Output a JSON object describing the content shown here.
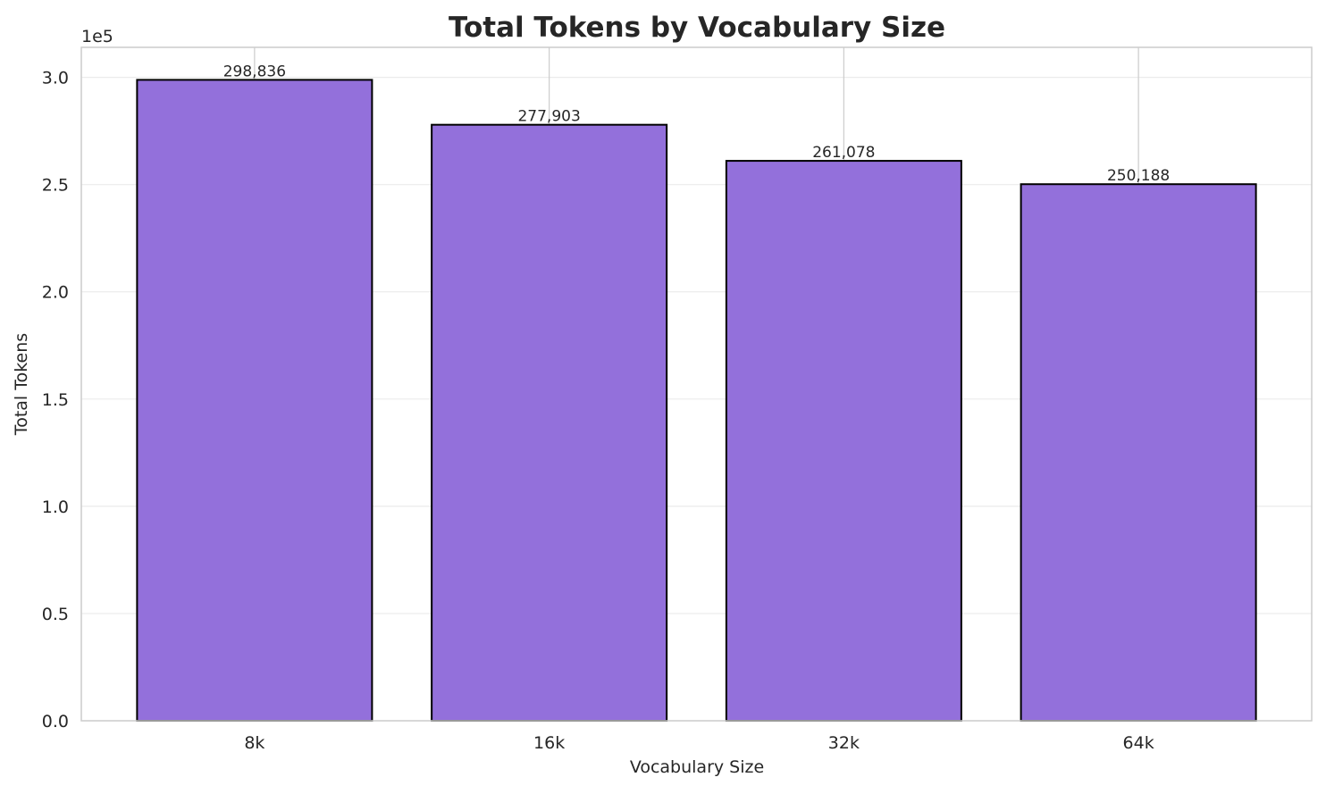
{
  "chart_data": {
    "type": "bar",
    "title": "Total Tokens by Vocabulary Size",
    "xlabel": "Vocabulary Size",
    "ylabel": "Total Tokens",
    "y_offset_label": "1e5",
    "y_scale_factor": 100000,
    "categories": [
      "8k",
      "16k",
      "32k",
      "64k"
    ],
    "values": [
      298836,
      277903,
      261078,
      250188
    ],
    "data_labels": [
      "298,836",
      "277,903",
      "261,078",
      "250,188"
    ],
    "yticks": [
      0,
      50000,
      100000,
      150000,
      200000,
      250000,
      300000
    ],
    "ytick_labels": [
      "0.0",
      "0.5",
      "1.0",
      "1.5",
      "2.0",
      "2.5",
      "3.0"
    ],
    "ylim": [
      0,
      314000
    ],
    "grid": true,
    "colors": {
      "bar": "#9370DB",
      "edge": "#000000",
      "grid_h": "#ebebeb",
      "grid_v": "#cccccc",
      "spine": "#cccccc"
    }
  }
}
